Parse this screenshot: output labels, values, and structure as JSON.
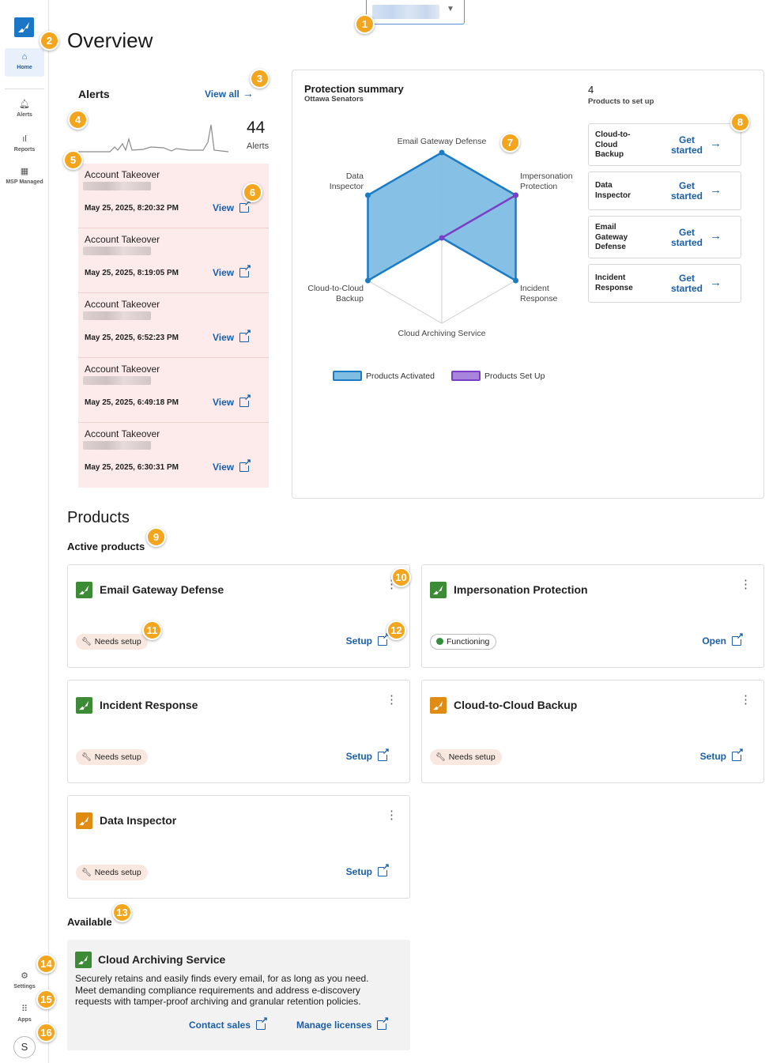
{
  "sidebar": {
    "items": [
      {
        "label": "Home",
        "icon": "home-icon"
      },
      {
        "label": "Alerts",
        "icon": "bell-icon"
      },
      {
        "label": "Reports",
        "icon": "bar-chart-icon"
      },
      {
        "label": "MSP Managed",
        "icon": "building-icon"
      }
    ],
    "bottom": [
      {
        "label": "Settings",
        "icon": "gear-icon"
      },
      {
        "label": "Apps",
        "icon": "grid-icon"
      }
    ],
    "avatar": "S"
  },
  "header": {
    "title": "Overview"
  },
  "alerts": {
    "title": "Alerts",
    "view_all": "View all",
    "count": "44",
    "count_label": "Alerts",
    "items": [
      {
        "type": "Account Takeover",
        "date": "May 25, 2025, 8:20:32 PM",
        "action": "View"
      },
      {
        "type": "Account Takeover",
        "date": "May 25, 2025, 8:19:05 PM",
        "action": "View"
      },
      {
        "type": "Account Takeover",
        "date": "May 25, 2025, 6:52:23 PM",
        "action": "View"
      },
      {
        "type": "Account Takeover",
        "date": "May 25, 2025, 6:49:18 PM",
        "action": "View"
      },
      {
        "type": "Account Takeover",
        "date": "May 25, 2025, 6:30:31 PM",
        "action": "View"
      }
    ]
  },
  "protection": {
    "title": "Protection summary",
    "subtitle": "Ottawa Senators",
    "axes": [
      "Email Gateway Defense",
      "Impersonation Protection",
      "Incident Response",
      "Cloud Archiving Service",
      "Cloud-to-Cloud Backup",
      "Data Inspector"
    ],
    "axis_labels": {
      "email": "Email Gateway Defense",
      "imp1": "Impersonation",
      "imp2": "Protection",
      "inc1": "Incident",
      "inc2": "Response",
      "arch": "Cloud Archiving Service",
      "c2c1": "Cloud-to-Cloud",
      "c2c2": "Backup",
      "di1": "Data",
      "di2": "Inspector"
    },
    "activated": [
      1,
      1,
      1,
      0,
      1,
      1
    ],
    "setup": [
      0,
      1,
      0,
      0,
      0,
      0
    ],
    "legend": {
      "activated": "Products Activated",
      "setup": "Products Set Up"
    },
    "colors": {
      "activated_fill": "#7fbde3",
      "activated_stroke": "#1b7cc5",
      "setup_stroke": "#7a3fc6"
    },
    "to_setup_count": "4",
    "to_setup_label": "Products to set up",
    "setup_cards": [
      {
        "l1": "Cloud-to-",
        "l2": "Cloud",
        "l3": "Backup",
        "g1": "Get",
        "g2": "started"
      },
      {
        "l1": "Data",
        "l2": "Inspector",
        "l3": "",
        "g1": "Get",
        "g2": "started"
      },
      {
        "l1": "Email",
        "l2": "Gateway",
        "l3": "Defense",
        "g1": "Get",
        "g2": "started"
      },
      {
        "l1": "Incident",
        "l2": "Response",
        "l3": "",
        "g1": "Get",
        "g2": "started"
      }
    ]
  },
  "products": {
    "title": "Products",
    "active_title": "Active products",
    "active": [
      {
        "name": "Email Gateway Defense",
        "status": "Needs setup",
        "action": "Setup",
        "icon_color": "#3d8b37"
      },
      {
        "name": "Impersonation Protection",
        "status": "Functioning",
        "action": "Open",
        "icon_color": "#3d8b37"
      },
      {
        "name": "Incident Response",
        "status": "Needs setup",
        "action": "Setup",
        "icon_color": "#3d8b37"
      },
      {
        "name": "Cloud-to-Cloud Backup",
        "status": "Needs setup",
        "action": "Setup",
        "icon_color": "#e08b12"
      },
      {
        "name": "Data Inspector",
        "status": "Needs setup",
        "action": "Setup",
        "icon_color": "#e08b12"
      }
    ],
    "available_title": "Available",
    "available": {
      "name": "Cloud Archiving Service",
      "description": "Securely retains and easily finds every email, for as long as you need. Meet demanding compliance requirements and address e-discovery requests with tamper-proof archiving and granular retention policies.",
      "contact": "Contact sales",
      "manage": "Manage licenses"
    }
  },
  "markers": [
    "1",
    "2",
    "3",
    "4",
    "5",
    "6",
    "7",
    "8",
    "9",
    "10",
    "11",
    "12",
    "13",
    "14",
    "15",
    "16"
  ]
}
